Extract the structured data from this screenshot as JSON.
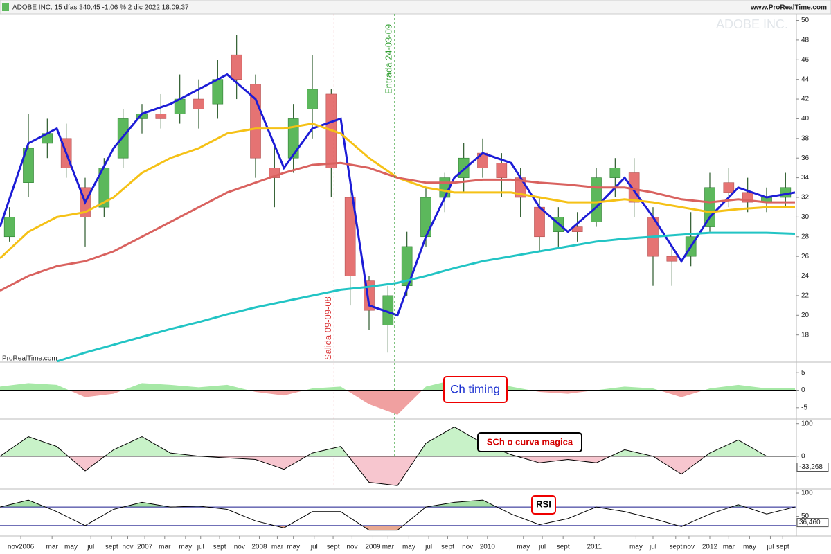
{
  "header": {
    "title": "ADOBE INC. 15 días 340,45 -1,06 % 2 dic 2022 18:09:37",
    "site": "www.ProRealTime.com"
  },
  "chart_data": [
    {
      "type": "candlestick",
      "watermark": "ADOBE INC.",
      "source": "ProRealTime.com",
      "x": [
        1,
        3,
        5,
        7,
        9,
        11,
        13,
        15,
        17,
        19,
        21,
        23,
        25,
        27,
        29,
        31,
        33,
        35,
        37,
        39,
        41,
        43,
        45,
        47,
        49,
        51,
        53,
        55,
        57,
        59,
        61,
        63,
        65,
        67,
        69,
        71,
        73,
        75,
        77,
        79,
        81,
        83
      ],
      "open": [
        28,
        33.5,
        37.5,
        38,
        33,
        31,
        36,
        40,
        40.5,
        40.5,
        42,
        41.5,
        46.5,
        43.5,
        35,
        36,
        41,
        42.5,
        32,
        23.5,
        19,
        23,
        28,
        32,
        34,
        36.5,
        35.5,
        34,
        31,
        28.5,
        29,
        29.5,
        34,
        34.5,
        30,
        26,
        26,
        29,
        33.5,
        32.5,
        31.5,
        32
      ],
      "high": [
        31,
        40.5,
        40,
        39.5,
        34,
        36,
        41,
        41.5,
        42.5,
        44.5,
        44,
        46,
        48.5,
        44.5,
        37,
        41.5,
        46.5,
        43,
        33,
        24,
        23,
        28.5,
        33,
        34.5,
        37.5,
        38,
        36.5,
        35,
        32,
        31,
        30.5,
        35,
        36,
        36,
        31,
        27,
        30.5,
        34.5,
        35,
        34,
        33,
        34.5
      ],
      "low": [
        27.5,
        32,
        36,
        34,
        27,
        30,
        35,
        38.5,
        39,
        39.5,
        39,
        40,
        42,
        34,
        31,
        34.5,
        38,
        32,
        21,
        18.5,
        16.2,
        22,
        27,
        30.5,
        32.5,
        34,
        32,
        30,
        26.5,
        27,
        27.5,
        29,
        32,
        30,
        23,
        23,
        25,
        28.5,
        31,
        30.5,
        30.5,
        31
      ],
      "close": [
        30,
        37,
        38.5,
        35,
        30,
        35,
        40,
        40.5,
        40,
        42,
        41,
        44,
        44,
        36,
        34,
        40,
        43,
        35,
        24,
        20.5,
        22,
        27,
        32,
        34,
        36,
        35,
        34,
        32,
        28,
        30,
        28.5,
        34,
        35,
        31.5,
        26,
        25.5,
        28,
        33,
        32.5,
        31.5,
        32,
        33
      ],
      "up_color": "#5cb85c",
      "down_color": "#e57373",
      "lines": {
        "x": [
          0,
          3,
          6,
          9,
          12,
          15,
          18,
          21,
          24,
          27,
          30,
          33,
          36,
          39,
          42,
          45,
          48,
          51,
          54,
          57,
          60,
          63,
          66,
          69,
          72,
          75,
          78,
          81,
          84
        ],
        "series": [
          {
            "color": "#1c1cd6",
            "values": [
              29,
              37.5,
              39,
              31.5,
              37,
              40.5,
              41.5,
              43,
              44.5,
              42,
              35,
              39,
              40,
              21,
              20,
              28,
              34,
              36.5,
              35.5,
              31,
              28.5,
              31,
              34,
              30,
              25.5,
              30,
              33,
              32,
              32.5
            ]
          },
          {
            "color": "#f5c116",
            "values": [
              25.8,
              28.5,
              30,
              30.5,
              32,
              34.5,
              36,
              37,
              38.5,
              39,
              39,
              39.5,
              38.5,
              36,
              34,
              33,
              32.5,
              32.5,
              32.5,
              32,
              31.5,
              31.5,
              31.8,
              31.5,
              31,
              30.5,
              30.8,
              31,
              31
            ]
          },
          {
            "color": "#d9625f",
            "values": [
              22.5,
              24,
              25,
              25.5,
              26.5,
              28,
              29.5,
              31,
              32.5,
              33.5,
              34.5,
              35.3,
              35.5,
              35,
              34,
              33.5,
              33.5,
              33.8,
              33.8,
              33.5,
              33.3,
              33,
              33,
              32.5,
              31.8,
              31.5,
              31.8,
              31.5,
              31.5
            ]
          },
          {
            "color": "#22c4c4",
            "values": [
              null,
              null,
              15.3,
              16.2,
              17,
              17.8,
              18.6,
              19.3,
              20.1,
              20.8,
              21.4,
              22,
              22.6,
              22.9,
              23.3,
              24,
              24.8,
              25.5,
              26,
              26.5,
              27,
              27.5,
              27.8,
              28,
              28.2,
              28.4,
              28.4,
              28.4,
              28.3
            ]
          }
        ]
      },
      "annotations": [
        {
          "text": "Salida 09-09-08",
          "x": 35.3,
          "color": "#d9383a"
        },
        {
          "text": "Entrada 24-03-09",
          "x": 41.7,
          "color": "#2e9e2e"
        }
      ],
      "xlim": [
        0,
        84
      ],
      "ylim": [
        15.3,
        50.6
      ],
      "yticks": [
        18,
        20,
        22,
        24,
        26,
        28,
        30,
        32,
        34,
        36,
        38,
        40,
        42,
        44,
        46,
        48,
        50
      ],
      "xticks": [
        {
          "value": 2.2,
          "label": "nov2006"
        },
        {
          "value": 5.5,
          "label": "mar"
        },
        {
          "value": 7.5,
          "label": "may"
        },
        {
          "value": 9.6,
          "label": "jul"
        },
        {
          "value": 11.8,
          "label": "sept"
        },
        {
          "value": 13.5,
          "label": "nov"
        },
        {
          "value": 15.3,
          "label": "2007"
        },
        {
          "value": 17.4,
          "label": "mar"
        },
        {
          "value": 19.6,
          "label": "may"
        },
        {
          "value": 21.2,
          "label": "jul"
        },
        {
          "value": 23.2,
          "label": "sept"
        },
        {
          "value": 25.3,
          "label": "nov"
        },
        {
          "value": 27.4,
          "label": "2008"
        },
        {
          "value": 29.3,
          "label": "mar"
        },
        {
          "value": 31,
          "label": "may"
        },
        {
          "value": 33.2,
          "label": "jul"
        },
        {
          "value": 35.2,
          "label": "sept"
        },
        {
          "value": 37.2,
          "label": "nov"
        },
        {
          "value": 39.4,
          "label": "2009"
        },
        {
          "value": 41,
          "label": "mar"
        },
        {
          "value": 43.2,
          "label": "may"
        },
        {
          "value": 45.3,
          "label": "jul"
        },
        {
          "value": 47.3,
          "label": "sept"
        },
        {
          "value": 49.4,
          "label": "nov"
        },
        {
          "value": 51.5,
          "label": "2010"
        },
        {
          "value": 55.3,
          "label": "may"
        },
        {
          "value": 57.3,
          "label": "jul"
        },
        {
          "value": 59.5,
          "label": "sept"
        },
        {
          "value": 62.8,
          "label": "2011"
        },
        {
          "value": 67.2,
          "label": "may"
        },
        {
          "value": 69,
          "label": "jul"
        },
        {
          "value": 71.4,
          "label": "sept"
        },
        {
          "value": 72.8,
          "label": "nov"
        },
        {
          "value": 75,
          "label": "2012"
        },
        {
          "value": 77,
          "label": "mar"
        },
        {
          "value": 79.2,
          "label": "may"
        },
        {
          "value": 81.4,
          "label": "jul"
        },
        {
          "value": 82.7,
          "label": "sept"
        }
      ]
    },
    {
      "type": "area",
      "title": "Ch timing",
      "x": [
        0,
        3,
        6,
        9,
        12,
        15,
        18,
        21,
        24,
        27,
        30,
        33,
        36,
        39,
        42,
        45,
        48,
        51,
        54,
        57,
        60,
        63,
        66,
        69,
        72,
        75,
        78,
        81,
        84
      ],
      "values": [
        1,
        2,
        1.5,
        -2,
        -1,
        2,
        1.5,
        0.8,
        1.5,
        -0.5,
        -1.5,
        0.5,
        1,
        -4,
        -7,
        1,
        3,
        3.5,
        1,
        -0.5,
        -1,
        0,
        1,
        0.5,
        -2,
        0.5,
        1.5,
        0.5,
        0.5
      ],
      "pos_color": "#a6e8a6",
      "neg_color": "#f0a0a0",
      "ylim": [
        -8,
        7.6
      ],
      "yticks": [
        5,
        0,
        -5
      ]
    },
    {
      "type": "area",
      "title": "SCh o curva magica",
      "x": [
        0,
        3,
        6,
        9,
        12,
        15,
        18,
        21,
        24,
        27,
        30,
        33,
        36,
        39,
        42,
        45,
        48,
        51,
        54,
        57,
        60,
        63,
        66,
        69,
        72,
        75,
        78,
        81,
        84
      ],
      "values": [
        0,
        60,
        30,
        -45,
        20,
        60,
        10,
        0,
        -5,
        -10,
        -40,
        10,
        30,
        -80,
        -90,
        40,
        90,
        40,
        5,
        -20,
        -10,
        -20,
        20,
        0,
        -55,
        10,
        50,
        0,
        0
      ],
      "pos_color": "#c8f2c8",
      "neg_color": "#f7c6cf",
      "ylim": [
        -98,
        110
      ],
      "yticks": [
        100,
        0
      ],
      "current": {
        "value": -33.268,
        "label": "-33,268"
      }
    },
    {
      "type": "line",
      "title": "RSI",
      "x": [
        0,
        3,
        6,
        9,
        12,
        15,
        18,
        21,
        24,
        27,
        30,
        33,
        36,
        39,
        42,
        45,
        48,
        51,
        54,
        57,
        60,
        63,
        66,
        69,
        72,
        75,
        78,
        81,
        84
      ],
      "values": [
        70,
        85,
        60,
        30,
        65,
        80,
        70,
        72,
        65,
        40,
        25,
        60,
        60,
        20,
        20,
        70,
        80,
        85,
        55,
        32,
        45,
        70,
        60,
        45,
        28,
        55,
        75,
        55,
        70
      ],
      "bands": [
        70,
        30
      ],
      "pos_color": "#a6e0a6",
      "neg_color": "#e8a890",
      "ylim": [
        9,
        106
      ],
      "yticks": [
        100,
        50
      ],
      "current": {
        "value": 36.46,
        "label": "36,460"
      }
    }
  ]
}
